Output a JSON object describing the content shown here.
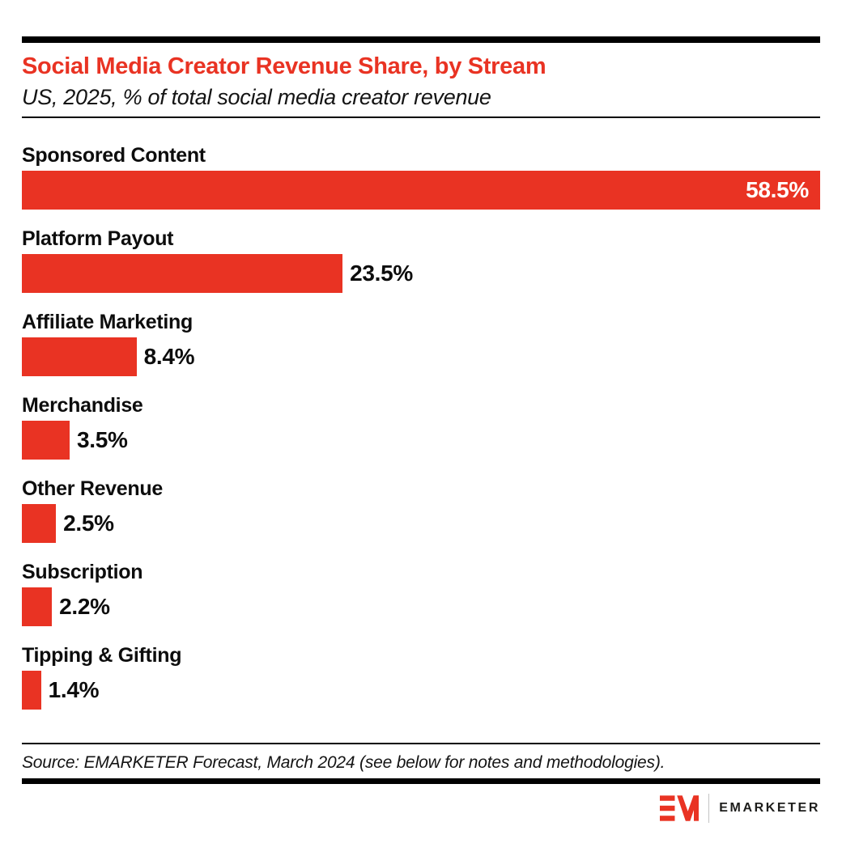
{
  "header": {
    "title": "Social Media Creator Revenue Share, by Stream",
    "subtitle": "US, 2025, % of total social media creator revenue"
  },
  "chart_data": {
    "type": "bar",
    "orientation": "horizontal",
    "title": "Social Media Creator Revenue Share, by Stream",
    "subtitle": "US, 2025, % of total social media creator revenue",
    "categories": [
      "Sponsored Content",
      "Platform Payout",
      "Affiliate Marketing",
      "Merchandise",
      "Other Revenue",
      "Subscription",
      "Tipping & Gifting"
    ],
    "values": [
      58.5,
      23.5,
      8.4,
      3.5,
      2.5,
      2.2,
      1.4
    ],
    "value_labels": [
      "58.5%",
      "23.5%",
      "8.4%",
      "3.5%",
      "2.5%",
      "2.2%",
      "1.4%"
    ],
    "xlabel": "",
    "ylabel": "",
    "xlim": [
      0,
      58.5
    ],
    "grid": false,
    "legend": false,
    "bar_color": "#E93323"
  },
  "footer": {
    "source": "Source: EMARKETER Forecast, March 2024 (see below for notes and methodologies).",
    "logo_word": "EMARKETER"
  },
  "colors": {
    "accent_red": "#E93323",
    "bar_red": "#E93323",
    "text_black": "#0d0d0d"
  }
}
